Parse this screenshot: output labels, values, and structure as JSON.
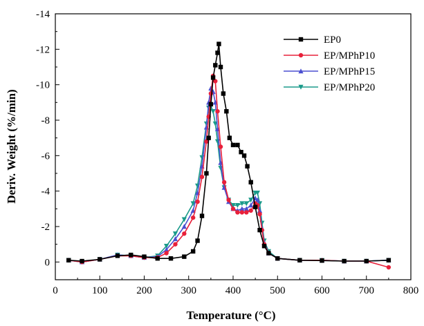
{
  "chart_data": {
    "type": "line",
    "xlabel": "Temperature (°C)",
    "ylabel": "Deriv. Weight (%/min)",
    "xlim": [
      0,
      800
    ],
    "ylim": [
      -14,
      1
    ],
    "y_axis_reversed": true,
    "grid": false,
    "legend_position": "top-right",
    "x_ticks": [
      "0",
      "100",
      "200",
      "300",
      "400",
      "500",
      "600",
      "700",
      "800"
    ],
    "y_ticks": [
      "-14",
      "-12",
      "-10",
      "-8",
      "-6",
      "-4",
      "-2",
      "0"
    ],
    "series": [
      {
        "name": "EP0",
        "color": "#000000",
        "marker": "square",
        "x": [
          30,
          60,
          100,
          140,
          170,
          200,
          230,
          260,
          290,
          310,
          320,
          330,
          340,
          345,
          350,
          355,
          360,
          365,
          368,
          372,
          378,
          385,
          392,
          400,
          410,
          418,
          425,
          432,
          440,
          450,
          460,
          470,
          480,
          500,
          550,
          600,
          650,
          700,
          750
        ],
        "y": [
          -0.1,
          -0.05,
          -0.15,
          -0.35,
          -0.4,
          -0.3,
          -0.2,
          -0.2,
          -0.3,
          -0.6,
          -1.2,
          -2.6,
          -5.0,
          -7.0,
          -8.9,
          -10.4,
          -11.1,
          -11.8,
          -12.3,
          -11.0,
          -9.5,
          -8.5,
          -7.0,
          -6.6,
          -6.6,
          -6.2,
          -6.0,
          -5.4,
          -4.5,
          -3.1,
          -1.8,
          -0.9,
          -0.5,
          -0.2,
          -0.1,
          -0.08,
          -0.05,
          -0.05,
          -0.1
        ]
      },
      {
        "name": "EP/MPhP10",
        "color": "#e8203a",
        "marker": "circle",
        "x": [
          30,
          60,
          100,
          140,
          170,
          200,
          230,
          250,
          270,
          290,
          310,
          320,
          330,
          340,
          345,
          350,
          355,
          360,
          365,
          372,
          380,
          390,
          400,
          410,
          420,
          430,
          440,
          450,
          455,
          460,
          465,
          470,
          480,
          500,
          550,
          600,
          650,
          700,
          750
        ],
        "y": [
          -0.1,
          0.0,
          -0.15,
          -0.35,
          -0.35,
          -0.25,
          -0.25,
          -0.5,
          -1.0,
          -1.6,
          -2.5,
          -3.4,
          -4.8,
          -6.8,
          -8.2,
          -9.5,
          -10.5,
          -10.2,
          -8.5,
          -6.5,
          -4.5,
          -3.5,
          -3.0,
          -2.8,
          -2.8,
          -2.8,
          -2.9,
          -3.3,
          -3.2,
          -2.7,
          -1.8,
          -1.0,
          -0.5,
          -0.2,
          -0.1,
          -0.1,
          -0.05,
          -0.05,
          0.3
        ]
      },
      {
        "name": "EP/MPhP15",
        "color": "#4a4fd0",
        "marker": "triangle-up",
        "x": [
          30,
          60,
          100,
          140,
          170,
          200,
          230,
          250,
          270,
          290,
          310,
          320,
          330,
          340,
          345,
          350,
          355,
          360,
          365,
          372,
          380,
          390,
          400,
          410,
          420,
          430,
          440,
          450,
          455,
          460,
          465,
          470,
          480,
          500,
          550,
          600,
          650,
          700,
          750
        ],
        "y": [
          -0.1,
          0.0,
          -0.15,
          -0.4,
          -0.35,
          -0.25,
          -0.3,
          -0.7,
          -1.3,
          -2.0,
          -2.9,
          -3.9,
          -5.4,
          -7.6,
          -9.0,
          -9.8,
          -9.6,
          -9.0,
          -7.5,
          -5.6,
          -4.2,
          -3.4,
          -3.0,
          -2.9,
          -3.0,
          -3.0,
          -3.2,
          -3.6,
          -3.5,
          -2.9,
          -1.9,
          -1.1,
          -0.5,
          -0.2,
          -0.1,
          -0.1,
          -0.05,
          -0.05,
          -0.1
        ]
      },
      {
        "name": "EP/MPhP20",
        "color": "#1a9a8a",
        "marker": "triangle-down",
        "x": [
          30,
          60,
          100,
          140,
          170,
          200,
          230,
          250,
          270,
          290,
          310,
          320,
          330,
          340,
          345,
          350,
          355,
          360,
          365,
          372,
          380,
          390,
          400,
          410,
          420,
          430,
          440,
          450,
          455,
          460,
          465,
          470,
          480,
          500,
          550,
          600,
          650,
          700,
          750
        ],
        "y": [
          -0.1,
          0.0,
          -0.15,
          -0.4,
          -0.35,
          -0.25,
          -0.35,
          -0.9,
          -1.6,
          -2.4,
          -3.3,
          -4.3,
          -5.9,
          -7.8,
          -8.7,
          -8.8,
          -8.5,
          -7.8,
          -6.8,
          -5.3,
          -4.2,
          -3.5,
          -3.2,
          -3.2,
          -3.3,
          -3.3,
          -3.5,
          -3.9,
          -3.9,
          -3.3,
          -2.2,
          -1.2,
          -0.6,
          -0.2,
          -0.1,
          -0.1,
          -0.05,
          -0.05,
          -0.1
        ]
      }
    ]
  }
}
